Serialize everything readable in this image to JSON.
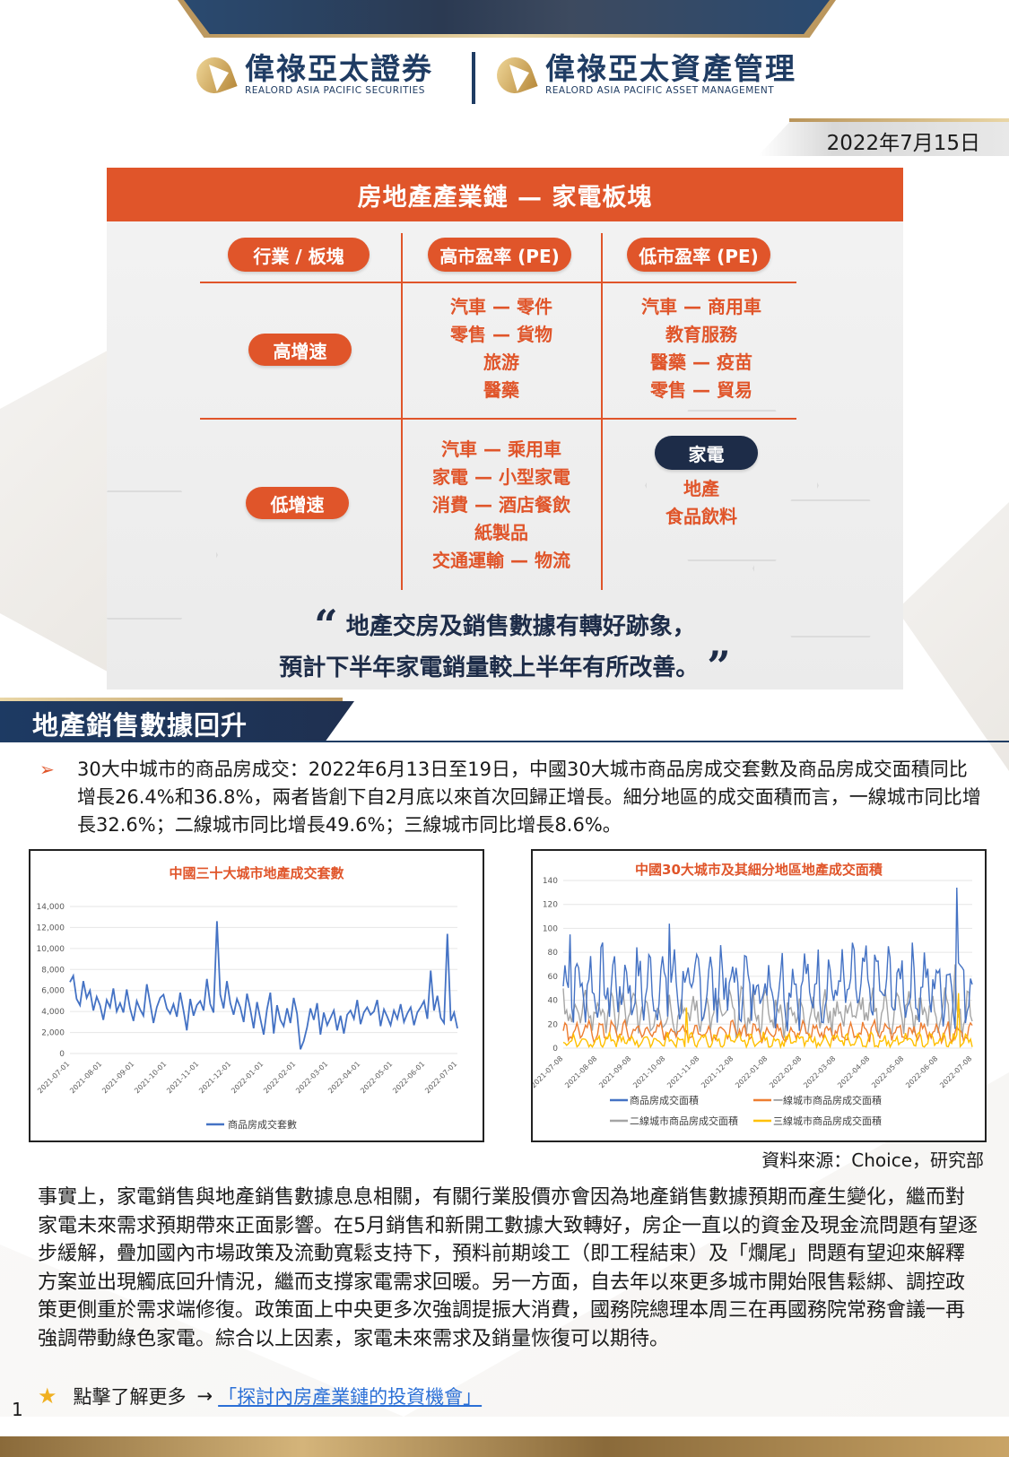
{
  "header": {
    "logo1_cn": "偉祿亞太證券",
    "logo1_en": "REALORD ASIA PACIFIC SECURITIES",
    "logo2_cn": "偉祿亞太資產管理",
    "logo2_en": "REALORD ASIA PACIFIC ASSET MANAGEMENT",
    "date": "2022年7月15日"
  },
  "infobox": {
    "title": "房地產產業鏈 — 家電板塊",
    "col_headers": [
      "行業 / 板塊",
      "高市盈率 (PE)",
      "低市盈率 (PE)"
    ],
    "rows": [
      {
        "label": "高增速",
        "high_pe": [
          "汽車 — 零件",
          "零售 — 貨物",
          "旅游",
          "醫藥"
        ],
        "low_pe": [
          "汽車 — 商用車",
          "教育服務",
          "醫藥 — 疫苗",
          "零售 — 貿易"
        ]
      },
      {
        "label": "低增速",
        "high_pe": [
          "汽車 — 乘用車",
          "家電 — 小型家電",
          "消費 — 酒店餐飲",
          "紙製品",
          "交通運輸 — 物流"
        ],
        "low_pe_highlight": "家電",
        "low_pe": [
          "地產",
          "食品飲料"
        ]
      }
    ],
    "quote_line1": "地產交房及銷售數據有轉好跡象，",
    "quote_line2": "預計下半年家電銷量較上半年有所改善。",
    "quote_open": "“",
    "quote_close": "”"
  },
  "section": {
    "title": "地產銷售數據回升",
    "bullet_text": "30大中城市的商品房成交：2022年6月13日至19日，中國30大城市商品房成交套數及商品房成交面積同比增長26.4%和36.8%，兩者皆創下自2月底以來首次回歸正增長。細分地區的成交面積而言，一線城市同比增長32.6%；二線城市同比增長49.6%；三線城市同比增長8.6%。"
  },
  "chart_data": [
    {
      "type": "line",
      "title": "中國三十大城市地產成交套數",
      "x_ticks": [
        "2021-07-01",
        "2021-08-01",
        "2021-09-01",
        "2021-10-01",
        "2021-11-01",
        "2021-12-01",
        "2022-01-01",
        "2022-02-01",
        "2022-03-01",
        "2022-04-01",
        "2022-05-01",
        "2022-06-01",
        "2022-07-01"
      ],
      "y_ticks": [
        "0",
        "2,000",
        "4,000",
        "6,000",
        "8,000",
        "10,000",
        "12,000",
        "14,000"
      ],
      "ylim": [
        0,
        14000
      ],
      "series": [
        {
          "name": "商品房成交套數",
          "color": "#4472c4",
          "values": [
            6800,
            7400,
            5200,
            4600,
            6900,
            5300,
            6000,
            4100,
            5400,
            4600,
            3200,
            5100,
            4400,
            6200,
            4000,
            4800,
            3900,
            6100,
            4300,
            3100,
            5000,
            4200,
            3600,
            6600,
            4800,
            2900,
            4400,
            5300,
            5600,
            4300,
            3800,
            4700,
            3500,
            5800,
            4100,
            2200,
            5200,
            3600,
            4600,
            5000,
            4100,
            7100,
            4700,
            3900,
            12600,
            5600,
            4300,
            6900,
            4800,
            3700,
            5200,
            4400,
            3000,
            5700,
            4200,
            2400,
            4900,
            3300,
            1800,
            4200,
            5800,
            1900,
            4600,
            3200,
            2600,
            4300,
            2900,
            5300,
            3800,
            400,
            1200,
            2500,
            4300,
            3200,
            4800,
            1800,
            3900,
            2700,
            3400,
            4100,
            2200,
            3600,
            1900,
            3700,
            4100,
            3300,
            5100,
            2800,
            3900,
            4400,
            3700,
            4000,
            5100,
            2600,
            4200,
            3500,
            2700,
            4100,
            3300,
            4700,
            3000,
            3800,
            4400,
            2700,
            3900,
            4400,
            5000,
            3300,
            7900,
            4100,
            5500,
            3400,
            2900,
            11400,
            3100,
            3900,
            2400
          ]
        }
      ]
    },
    {
      "type": "line",
      "title": "中國30大城市及其細分地區地產成交面積",
      "x_ticks": [
        "2021-07-08",
        "2021-08-08",
        "2021-09-08",
        "2021-10-08",
        "2021-11-08",
        "2021-12-08",
        "2022-01-08",
        "2022-02-08",
        "2022-03-08",
        "2022-04-08",
        "2022-05-08",
        "2022-06-08",
        "2022-07-08"
      ],
      "y_ticks": [
        "0",
        "20",
        "40",
        "60",
        "80",
        "100",
        "120",
        "140"
      ],
      "ylim": [
        0,
        140
      ],
      "series": [
        {
          "name": "商品房成交面積",
          "color": "#4472c4"
        },
        {
          "name": "一線城市商品房成交面積",
          "color": "#ed7d31"
        },
        {
          "name": "二線城市商品房成交面積",
          "color": "#a5a5a5"
        },
        {
          "name": "三線城市商品房成交面積",
          "color": "#ffc000"
        }
      ]
    }
  ],
  "source": "資料來源：Choice，研究部",
  "body_text": "事實上，家電銷售與地產銷售數據息息相關，有關行業股價亦會因為地產銷售數據預期而產生變化，繼而對家電未來需求預期帶來正面影響。在5月銷售和新開工數據大致轉好，房企一直以的資金及現金流問題有望逐步緩解，疊加國內市場政策及流動寬鬆支持下，預料前期竣工（即工程結束）及「爛尾」問題有望迎來解釋方案並出現觸底回升情況，繼而支撐家電需求回暖。另一方面，自去年以來更多城市開始限售鬆綁、調控政策更側重於需求端修復。政策面上中央更多次強調提振大消費，國務院總理本周三在再國務院常務會議一再強調帶動綠色家電。綜合以上因素，家電未來需求及銷量恢復可以期待。",
  "more": {
    "label": "點擊了解更多",
    "arrow": "→",
    "link_text": "「探討內房產業鏈的投資機會」"
  },
  "page_number": "1"
}
